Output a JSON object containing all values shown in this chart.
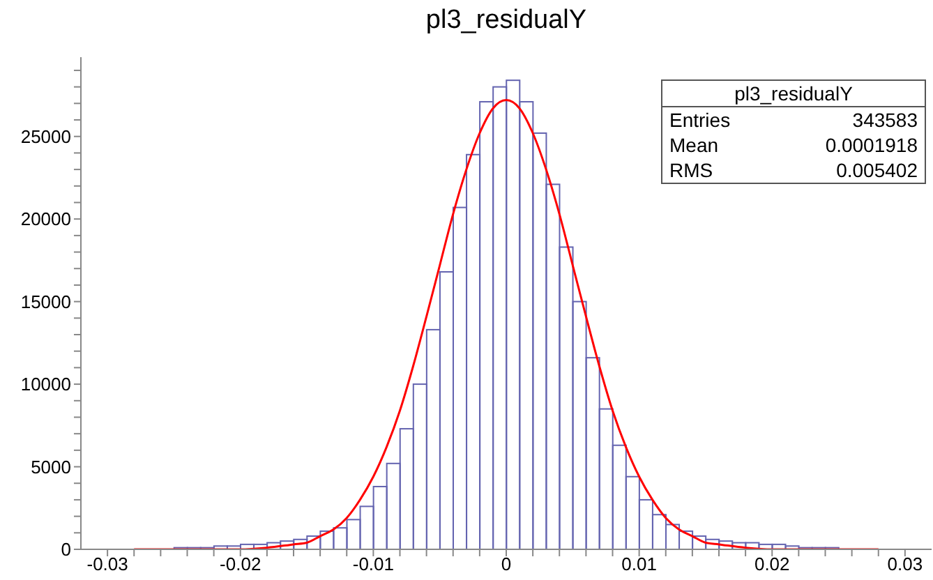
{
  "chart_data": {
    "type": "histogram",
    "title": "pl3_residualY",
    "legend": false,
    "grid": false,
    "annotations": [
      "pl3_residualY",
      "Entries",
      "343583",
      "Mean",
      "0.0001918",
      "RMS",
      "0.005402"
    ],
    "xlim": [
      -0.032,
      0.032
    ],
    "ylim": [
      0,
      29800
    ],
    "xticks": [
      -0.03,
      {
        "value": -0.028,
        "label": null
      },
      {
        "value": -0.026,
        "label": null
      },
      {
        "value": -0.024,
        "label": null
      },
      {
        "value": -0.022,
        "label": null
      },
      -0.02,
      {
        "value": -0.018,
        "label": null
      },
      {
        "value": -0.016,
        "label": null
      },
      {
        "value": -0.014,
        "label": null
      },
      {
        "value": -0.012,
        "label": null
      },
      -0.01,
      {
        "value": -0.008,
        "label": null
      },
      {
        "value": -0.006,
        "label": null
      },
      {
        "value": -0.004,
        "label": null
      },
      {
        "value": -0.002,
        "label": null
      },
      0,
      {
        "value": 0.002,
        "label": null
      },
      {
        "value": 0.004,
        "label": null
      },
      {
        "value": 0.006,
        "label": null
      },
      {
        "value": 0.008,
        "label": null
      },
      0.01,
      {
        "value": 0.012,
        "label": null
      },
      {
        "value": 0.014,
        "label": null
      },
      {
        "value": 0.016,
        "label": null
      },
      {
        "value": 0.018,
        "label": null
      },
      0.02,
      {
        "value": 0.022,
        "label": null
      },
      {
        "value": 0.024,
        "label": null
      },
      {
        "value": 0.026,
        "label": null
      },
      {
        "value": 0.028,
        "label": null
      },
      0.03
    ],
    "yticks": [
      0,
      {
        "value": 1000,
        "label": null
      },
      {
        "value": 2000,
        "label": null
      },
      {
        "value": 3000,
        "label": null
      },
      {
        "value": 4000,
        "label": null
      },
      5000,
      {
        "value": 6000,
        "label": null
      },
      {
        "value": 7000,
        "label": null
      },
      {
        "value": 8000,
        "label": null
      },
      {
        "value": 9000,
        "label": null
      },
      10000,
      {
        "value": 11000,
        "label": null
      },
      {
        "value": 12000,
        "label": null
      },
      {
        "value": 13000,
        "label": null
      },
      {
        "value": 14000,
        "label": null
      },
      15000,
      {
        "value": 16000,
        "label": null
      },
      {
        "value": 17000,
        "label": null
      },
      {
        "value": 18000,
        "label": null
      },
      {
        "value": 19000,
        "label": null
      },
      20000,
      {
        "value": 21000,
        "label": null
      },
      {
        "value": 22000,
        "label": null
      },
      {
        "value": 23000,
        "label": null
      },
      {
        "value": 24000,
        "label": null
      },
      25000,
      {
        "value": 26000,
        "label": null
      },
      {
        "value": 27000,
        "label": null
      },
      {
        "value": 28000,
        "label": null
      },
      {
        "value": 29000,
        "label": null
      }
    ],
    "series": [
      {
        "color": "#6464b0",
        "bins": [
          -0.032,
          -0.031,
          -0.03,
          -0.029,
          -0.028,
          -0.027,
          -0.026,
          -0.025,
          -0.024,
          -0.023,
          -0.022,
          -0.021,
          -0.02,
          -0.019,
          -0.018,
          -0.017,
          -0.016,
          -0.015,
          -0.014,
          -0.013,
          -0.012,
          -0.011,
          -0.01,
          -0.009,
          -0.008,
          -0.007,
          -0.006,
          -0.005,
          -0.004,
          -0.003,
          -0.002,
          -0.001,
          0,
          0.001,
          0.002,
          0.003,
          0.004,
          0.005,
          0.006,
          0.007,
          0.008,
          0.009,
          0.01,
          0.011,
          0.012,
          0.013,
          0.014,
          0.015,
          0.016,
          0.017,
          0.018,
          0.019,
          0.02,
          0.021,
          0.022,
          0.023,
          0.024,
          0.025,
          0.026,
          0.027,
          0.028,
          0.029,
          0.03,
          0.031,
          0.032
        ],
        "values": [
          0,
          0,
          0,
          0,
          0,
          0,
          0,
          100,
          100,
          100,
          200,
          200,
          300,
          300,
          400,
          500,
          600,
          800,
          1100,
          1300,
          1800,
          2600,
          3800,
          5200,
          7300,
          10000,
          13300,
          16800,
          20700,
          23900,
          27100,
          28000,
          28400,
          27100,
          25200,
          22100,
          18300,
          15000,
          11600,
          8500,
          6300,
          4400,
          3000,
          2100,
          1500,
          1100,
          800,
          600,
          500,
          400,
          400,
          300,
          300,
          200,
          100,
          100,
          100,
          0,
          0,
          0,
          0,
          0,
          0,
          0
        ]
      },
      {
        "type": "line",
        "color": "#ff0000",
        "marker": "none",
        "line_style": "solid",
        "x": [
          -0.028,
          -0.024,
          -0.022,
          -0.02,
          -0.018,
          -0.016,
          -0.015,
          -0.014,
          -0.013,
          -0.012,
          -0.011,
          -0.01,
          -0.009,
          -0.008,
          -0.007,
          -0.006,
          -0.005,
          -0.004,
          -0.003,
          -0.002,
          -0.001,
          0,
          0.001,
          0.002,
          0.003,
          0.004,
          0.005,
          0.006,
          0.007,
          0.008,
          0.009,
          0.01,
          0.011,
          0.012,
          0.013,
          0.014,
          0.015,
          0.016,
          0.018,
          0.02,
          0.022,
          0.024,
          0.028
        ],
        "values": [
          0,
          0,
          0,
          0,
          100,
          300,
          400,
          800,
          1200,
          1900,
          3000,
          4400,
          6200,
          8400,
          11100,
          14100,
          17200,
          20300,
          23000,
          25200,
          26700,
          27200,
          26700,
          25200,
          23000,
          20300,
          17200,
          14100,
          11100,
          8400,
          6200,
          4400,
          3000,
          1900,
          1200,
          800,
          400,
          300,
          100,
          0,
          0,
          0,
          0
        ]
      }
    ]
  }
}
